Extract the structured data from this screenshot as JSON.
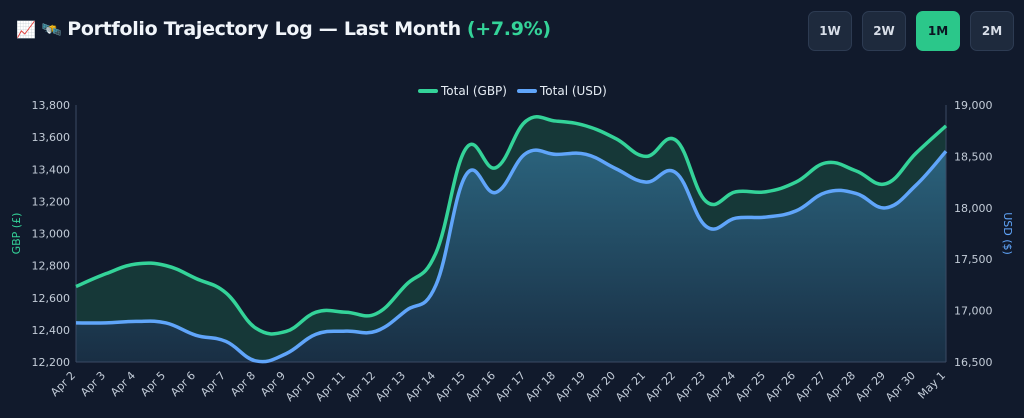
{
  "header": {
    "icon_chart": "📈",
    "icon_satellite": "🛰️",
    "title": "Portfolio Trajectory Log — Last Month",
    "delta": "(+7.9%)"
  },
  "range_buttons": [
    {
      "label": "1W",
      "active": false
    },
    {
      "label": "2W",
      "active": false
    },
    {
      "label": "1M",
      "active": true
    },
    {
      "label": "2M",
      "active": false
    }
  ],
  "colors": {
    "background": "#111a2c",
    "gbp": "#34d399",
    "usd": "#60a5fa",
    "accent": "#2bc78a"
  },
  "chart_data": {
    "type": "line",
    "categories": [
      "Apr 2",
      "Apr 3",
      "Apr 4",
      "Apr 5",
      "Apr 6",
      "Apr 7",
      "Apr 8",
      "Apr 9",
      "Apr 10",
      "Apr 11",
      "Apr 12",
      "Apr 13",
      "Apr 14",
      "Apr 15",
      "Apr 16",
      "Apr 17",
      "Apr 18",
      "Apr 19",
      "Apr 20",
      "Apr 21",
      "Apr 22",
      "Apr 23",
      "Apr 24",
      "Apr 25",
      "Apr 26",
      "Apr 27",
      "Apr 28",
      "Apr 29",
      "Apr 30",
      "May 1"
    ],
    "series": [
      {
        "name": "Total (GBP)",
        "axis": "left",
        "color": "#34d399",
        "values": [
          12670,
          12750,
          12810,
          12800,
          12720,
          12630,
          12410,
          12390,
          12510,
          12510,
          12500,
          12680,
          12880,
          13530,
          13410,
          13700,
          13700,
          13670,
          13590,
          13480,
          13580,
          13200,
          13260,
          13260,
          13320,
          13440,
          13390,
          13310,
          13500,
          13670
        ]
      },
      {
        "name": "Total (USD)",
        "axis": "right",
        "color": "#60a5fa",
        "values": [
          16880,
          16880,
          16895,
          16880,
          16760,
          16700,
          16510,
          16580,
          16770,
          16800,
          16800,
          17000,
          17250,
          18320,
          18150,
          18530,
          18520,
          18520,
          18380,
          18250,
          18340,
          17820,
          17900,
          17910,
          17970,
          18150,
          18140,
          18000,
          18220,
          18550
        ]
      }
    ],
    "y_left": {
      "label": "GBP (£)",
      "min": 12200,
      "max": 13800,
      "ticks": [
        "12,200",
        "12,400",
        "12,600",
        "12,800",
        "13,000",
        "13,200",
        "13,400",
        "13,600",
        "13,800"
      ]
    },
    "y_right": {
      "label": "USD ($)",
      "min": 16500,
      "max": 19000,
      "ticks": [
        "16,500",
        "17,000",
        "17,500",
        "18,000",
        "18,500",
        "19,000"
      ]
    },
    "legend_position": "top-center"
  }
}
